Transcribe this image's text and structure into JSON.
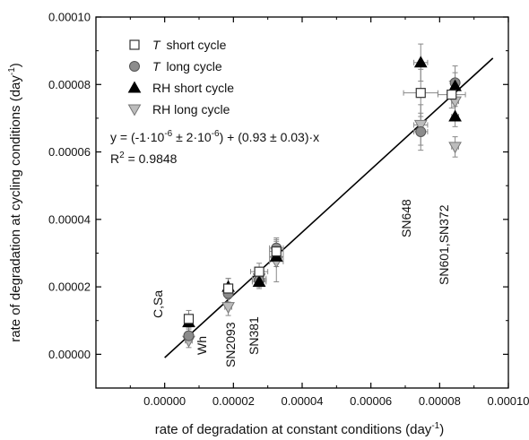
{
  "chart_data": {
    "type": "scatter",
    "xlabel": "rate of degradation at constant conditions (day",
    "xlabel_sup": "-1",
    "xlabel_end": ")",
    "ylabel": "rate of degradation at cycling conditions (day",
    "ylabel_sup": "-1",
    "ylabel_end": ")",
    "xlim": [
      -2e-05,
      0.0001
    ],
    "ylim": [
      -1e-05,
      0.0001
    ],
    "xticks": [
      "0.00000",
      "0.00002",
      "0.00004",
      "0.00006",
      "0.00008",
      "0.00010"
    ],
    "yticks": [
      "0.00000",
      "0.00002",
      "0.00004",
      "0.00006",
      "0.00008",
      "0.00010"
    ],
    "legend_position": "top-left",
    "series": [
      {
        "name": "short cycle",
        "name_prefix": "T",
        "italic_prefix": true,
        "marker": "square",
        "fill": "#ffffff",
        "stroke": "#333333",
        "points": [
          {
            "x": 7e-06,
            "y": 1.05e-05,
            "xerr": 1e-06,
            "yerr": 2.5e-06
          },
          {
            "x": 1.85e-05,
            "y": 1.95e-05,
            "xerr": 1e-06,
            "yerr": 3e-06
          },
          {
            "x": 2.75e-05,
            "y": 2.45e-05,
            "xerr": 2.5e-06,
            "yerr": 2.5e-06
          },
          {
            "x": 3.25e-05,
            "y": 3.05e-05,
            "xerr": 2e-06,
            "yerr": 3.5e-06
          },
          {
            "x": 7.45e-05,
            "y": 7.75e-05,
            "xerr": 5e-06,
            "yerr": 7e-06
          },
          {
            "x": 8.35e-05,
            "y": 7.7e-05,
            "xerr": 4e-06,
            "yerr": 4e-06
          }
        ]
      },
      {
        "name": "long cycle",
        "name_prefix": "T",
        "italic_prefix": true,
        "marker": "circle",
        "fill": "#8c8c8c",
        "stroke": "#555555",
        "points": [
          {
            "x": 7e-06,
            "y": 5.5e-06,
            "xerr": 1e-06,
            "yerr": 2e-06
          },
          {
            "x": 1.85e-05,
            "y": 1.8e-05,
            "xerr": 1e-06,
            "yerr": 2.5e-06
          },
          {
            "x": 2.75e-05,
            "y": 2.2e-05,
            "xerr": 2e-06,
            "yerr": 2e-06
          },
          {
            "x": 3.25e-05,
            "y": 3.15e-05,
            "xerr": 2e-06,
            "yerr": 3e-06
          },
          {
            "x": 7.45e-05,
            "y": 6.6e-05,
            "xerr": 2e-06,
            "yerr": 5.5e-06
          },
          {
            "x": 8.45e-05,
            "y": 8.05e-05,
            "xerr": 1e-06,
            "yerr": 5e-06
          }
        ]
      },
      {
        "name": "RH short cycle",
        "marker": "triangle-up",
        "fill": "#000000",
        "stroke": "#000000",
        "points": [
          {
            "x": 7e-06,
            "y": 9.5e-06,
            "xerr": 1e-06,
            "yerr": 2e-06
          },
          {
            "x": 1.85e-05,
            "y": 2e-05,
            "xerr": 1e-06,
            "yerr": 2.5e-06
          },
          {
            "x": 2.75e-05,
            "y": 2.15e-05,
            "xerr": 2e-06,
            "yerr": 2e-06
          },
          {
            "x": 3.25e-05,
            "y": 2.9e-05,
            "xerr": 2e-06,
            "yerr": 3e-06
          },
          {
            "x": 7.45e-05,
            "y": 8.65e-05,
            "xerr": 2e-06,
            "yerr": 5.5e-06
          },
          {
            "x": 8.45e-05,
            "y": 7.95e-05,
            "xerr": 1e-06,
            "yerr": 4e-06
          },
          {
            "x": 8.45e-05,
            "y": 7.05e-05,
            "xerr": 1e-06,
            "yerr": 3e-06
          }
        ]
      },
      {
        "name": "RH long cycle",
        "marker": "triangle-down",
        "fill": "#bcbcbc",
        "stroke": "#777777",
        "points": [
          {
            "x": 7e-06,
            "y": 4e-06,
            "xerr": 1e-06,
            "yerr": 2e-06
          },
          {
            "x": 1.85e-05,
            "y": 1.4e-05,
            "xerr": 1e-06,
            "yerr": 2.5e-06
          },
          {
            "x": 2.75e-05,
            "y": 2.25e-05,
            "xerr": 2e-06,
            "yerr": 2e-06
          },
          {
            "x": 3.25e-05,
            "y": 2.75e-05,
            "xerr": 2e-06,
            "yerr": 6e-06
          },
          {
            "x": 7.45e-05,
            "y": 6.8e-05,
            "xerr": 2e-06,
            "yerr": 6e-06
          },
          {
            "x": 8.45e-05,
            "y": 7.5e-05,
            "xerr": 1e-06,
            "yerr": 4e-06
          },
          {
            "x": 8.45e-05,
            "y": 6.15e-05,
            "xerr": 1e-06,
            "yerr": 3e-06
          }
        ]
      }
    ],
    "fit": {
      "slope": 0.93,
      "intercept": -1e-06,
      "x_range": [
        0.0,
        9.55e-05
      ],
      "equation_parts": [
        "y = (-1·10",
        "-6",
        " ± 2·10",
        "-6",
        ") + (0.93 ± 0.03)·x"
      ],
      "r2_label": "R",
      "r2_sup": "2",
      "r2_value": " = 0.9848"
    },
    "annotations": [
      {
        "text": "C,Sa"
      },
      {
        "text": "Wh"
      },
      {
        "text": "SN2093"
      },
      {
        "text": "SN381"
      },
      {
        "text": "SN648"
      },
      {
        "text": "SN601,SN372"
      }
    ]
  }
}
